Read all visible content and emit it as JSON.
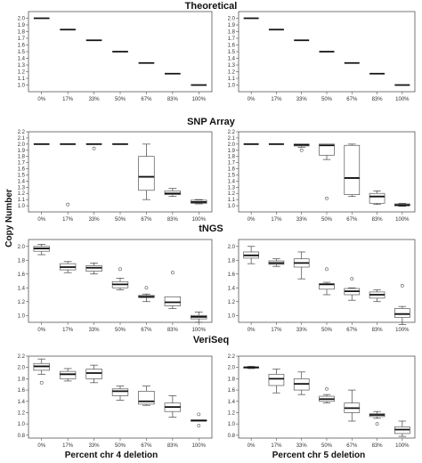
{
  "figure": {
    "y_axis_label": "Copy Number",
    "x_axis_labels": [
      "Percent chr 4 deletion",
      "Percent chr 5 deletion"
    ]
  },
  "chart_data": {
    "type": "box",
    "categories": [
      "0%",
      "17%",
      "33%",
      "50%",
      "67%",
      "83%",
      "100%"
    ],
    "ylabel": "Copy Number",
    "ylim": [
      0.9,
      2.1
    ],
    "yticks": [
      "1.0",
      "1.2",
      "1.4",
      "1.6",
      "1.8",
      "2.0"
    ],
    "y_ticks": [
      1.0,
      1.2,
      1.4,
      1.6,
      1.8,
      2.0
    ],
    "ytick_labels": [
      "1.0",
      "1.1",
      "1.2",
      "1.3",
      "1.4",
      "1.5",
      "1.6",
      "1.7",
      "1.8",
      "1.9",
      "2.0",
      "2.1",
      "2.2"
    ],
    "rows": [
      {
        "title": "Theoretical",
        "ylim": [
          0.9,
          2.1
        ],
        "ytick_labels": [
          "1.0",
          "1.1",
          "1.2",
          "1.3",
          "1.4",
          "1.5",
          "1.6",
          "1.7",
          "1.8",
          "1.9",
          "2.0"
        ],
        "yticks": [
          1.0,
          1.1,
          1.2,
          1.3,
          1.4,
          1.5,
          1.6,
          1.7,
          1.8,
          1.9,
          2.0
        ],
        "panels": [
          {
            "xlabel": "",
            "boxes": [
              {
                "q1": 2.0,
                "median": 2.0,
                "q3": 2.0,
                "whislo": 2.0,
                "whishi": 2.0,
                "outliers": []
              },
              {
                "q1": 1.83,
                "median": 1.83,
                "q3": 1.83,
                "whislo": 1.83,
                "whishi": 1.83,
                "outliers": []
              },
              {
                "q1": 1.67,
                "median": 1.67,
                "q3": 1.67,
                "whislo": 1.67,
                "whishi": 1.67,
                "outliers": []
              },
              {
                "q1": 1.5,
                "median": 1.5,
                "q3": 1.5,
                "whislo": 1.5,
                "whishi": 1.5,
                "outliers": []
              },
              {
                "q1": 1.33,
                "median": 1.33,
                "q3": 1.33,
                "whislo": 1.33,
                "whishi": 1.33,
                "outliers": []
              },
              {
                "q1": 1.17,
                "median": 1.17,
                "q3": 1.17,
                "whislo": 1.17,
                "whishi": 1.17,
                "outliers": []
              },
              {
                "q1": 1.0,
                "median": 1.0,
                "q3": 1.0,
                "whislo": 1.0,
                "whishi": 1.0,
                "outliers": []
              }
            ]
          },
          {
            "xlabel": "",
            "boxes": [
              {
                "q1": 2.0,
                "median": 2.0,
                "q3": 2.0,
                "whislo": 2.0,
                "whishi": 2.0,
                "outliers": []
              },
              {
                "q1": 1.83,
                "median": 1.83,
                "q3": 1.83,
                "whislo": 1.83,
                "whishi": 1.83,
                "outliers": []
              },
              {
                "q1": 1.67,
                "median": 1.67,
                "q3": 1.67,
                "whislo": 1.67,
                "whishi": 1.67,
                "outliers": []
              },
              {
                "q1": 1.5,
                "median": 1.5,
                "q3": 1.5,
                "whislo": 1.5,
                "whishi": 1.5,
                "outliers": []
              },
              {
                "q1": 1.33,
                "median": 1.33,
                "q3": 1.33,
                "whislo": 1.33,
                "whishi": 1.33,
                "outliers": []
              },
              {
                "q1": 1.17,
                "median": 1.17,
                "q3": 1.17,
                "whislo": 1.17,
                "whishi": 1.17,
                "outliers": []
              },
              {
                "q1": 1.0,
                "median": 1.0,
                "q3": 1.0,
                "whislo": 1.0,
                "whishi": 1.0,
                "outliers": []
              }
            ]
          }
        ]
      },
      {
        "title": "SNP Array",
        "ylim": [
          0.9,
          2.2
        ],
        "ytick_labels": [
          "1.0",
          "1.1",
          "1.2",
          "1.3",
          "1.4",
          "1.5",
          "1.6",
          "1.7",
          "1.8",
          "1.9",
          "2.0",
          "2.1",
          "2.2"
        ],
        "yticks": [
          1.0,
          1.1,
          1.2,
          1.3,
          1.4,
          1.5,
          1.6,
          1.7,
          1.8,
          1.9,
          2.0,
          2.1,
          2.2
        ],
        "panels": [
          {
            "xlabel": "",
            "boxes": [
              {
                "q1": 2.0,
                "median": 2.0,
                "q3": 2.0,
                "whislo": 2.0,
                "whishi": 2.0,
                "outliers": []
              },
              {
                "q1": 2.0,
                "median": 2.0,
                "q3": 2.0,
                "whislo": 2.0,
                "whishi": 2.0,
                "outliers": [
                  1.02
                ]
              },
              {
                "q1": 2.0,
                "median": 2.0,
                "q3": 2.0,
                "whislo": 2.0,
                "whishi": 2.0,
                "outliers": [
                  1.93
                ]
              },
              {
                "q1": 2.0,
                "median": 2.0,
                "q3": 2.0,
                "whislo": 2.0,
                "whishi": 2.0,
                "outliers": []
              },
              {
                "q1": 1.25,
                "median": 1.47,
                "q3": 1.8,
                "whislo": 1.1,
                "whishi": 2.0,
                "outliers": []
              },
              {
                "q1": 1.18,
                "median": 1.2,
                "q3": 1.24,
                "whislo": 1.15,
                "whishi": 1.28,
                "outliers": []
              },
              {
                "q1": 1.04,
                "median": 1.06,
                "q3": 1.09,
                "whislo": 1.03,
                "whishi": 1.1,
                "outliers": []
              }
            ]
          },
          {
            "xlabel": "",
            "boxes": [
              {
                "q1": 2.0,
                "median": 2.0,
                "q3": 2.0,
                "whislo": 2.0,
                "whishi": 2.0,
                "outliers": []
              },
              {
                "q1": 2.0,
                "median": 2.0,
                "q3": 2.0,
                "whislo": 2.0,
                "whishi": 2.0,
                "outliers": []
              },
              {
                "q1": 1.97,
                "median": 1.99,
                "q3": 2.0,
                "whislo": 1.95,
                "whishi": 2.0,
                "outliers": [
                  1.9
                ]
              },
              {
                "q1": 1.82,
                "median": 1.98,
                "q3": 2.0,
                "whislo": 1.75,
                "whishi": 2.0,
                "outliers": [
                  1.12
                ]
              },
              {
                "q1": 1.18,
                "median": 1.45,
                "q3": 1.98,
                "whislo": 1.15,
                "whishi": 2.0,
                "outliers": []
              },
              {
                "q1": 1.04,
                "median": 1.15,
                "q3": 1.2,
                "whislo": 1.02,
                "whishi": 1.24,
                "outliers": []
              },
              {
                "q1": 1.0,
                "median": 1.01,
                "q3": 1.03,
                "whislo": 0.99,
                "whishi": 1.04,
                "outliers": []
              }
            ]
          }
        ]
      },
      {
        "title": "tNGS",
        "ylim": [
          0.9,
          2.1
        ],
        "ytick_labels": [
          "1.0",
          "1.2",
          "1.4",
          "1.6",
          "1.8",
          "2.0"
        ],
        "yticks": [
          1.0,
          1.2,
          1.4,
          1.6,
          1.8,
          2.0
        ],
        "panels": [
          {
            "xlabel": "",
            "boxes": [
              {
                "q1": 1.93,
                "median": 1.97,
                "q3": 2.0,
                "whislo": 1.88,
                "whishi": 2.03,
                "outliers": []
              },
              {
                "q1": 1.66,
                "median": 1.7,
                "q3": 1.75,
                "whislo": 1.62,
                "whishi": 1.78,
                "outliers": []
              },
              {
                "q1": 1.64,
                "median": 1.69,
                "q3": 1.72,
                "whislo": 1.6,
                "whishi": 1.76,
                "outliers": []
              },
              {
                "q1": 1.4,
                "median": 1.45,
                "q3": 1.49,
                "whislo": 1.37,
                "whishi": 1.54,
                "outliers": [
                  1.67
                ]
              },
              {
                "q1": 1.26,
                "median": 1.27,
                "q3": 1.29,
                "whislo": 1.2,
                "whishi": 1.31,
                "outliers": [
                  1.4
                ]
              },
              {
                "q1": 1.14,
                "median": 1.19,
                "q3": 1.27,
                "whislo": 1.1,
                "whishi": 1.27,
                "outliers": [
                  1.62
                ]
              },
              {
                "q1": 0.95,
                "median": 0.98,
                "q3": 1.0,
                "whislo": 0.9,
                "whishi": 1.05,
                "outliers": []
              }
            ]
          },
          {
            "xlabel": "",
            "boxes": [
              {
                "q1": 1.83,
                "median": 1.87,
                "q3": 1.92,
                "whislo": 1.75,
                "whishi": 2.0,
                "outliers": []
              },
              {
                "q1": 1.74,
                "median": 1.76,
                "q3": 1.79,
                "whislo": 1.71,
                "whishi": 1.82,
                "outliers": []
              },
              {
                "q1": 1.7,
                "median": 1.76,
                "q3": 1.82,
                "whislo": 1.53,
                "whishi": 1.92,
                "outliers": []
              },
              {
                "q1": 1.38,
                "median": 1.45,
                "q3": 1.46,
                "whislo": 1.3,
                "whishi": 1.48,
                "outliers": [
                  1.67
                ]
              },
              {
                "q1": 1.3,
                "median": 1.35,
                "q3": 1.39,
                "whislo": 1.22,
                "whishi": 1.4,
                "outliers": [
                  1.53
                ]
              },
              {
                "q1": 1.25,
                "median": 1.3,
                "q3": 1.34,
                "whislo": 1.2,
                "whishi": 1.37,
                "outliers": []
              },
              {
                "q1": 0.97,
                "median": 1.02,
                "q3": 1.1,
                "whislo": 0.87,
                "whishi": 1.13,
                "outliers": [
                  1.43
                ]
              }
            ]
          }
        ]
      },
      {
        "title": "VeriSeq",
        "ylim": [
          0.75,
          2.2
        ],
        "ytick_labels": [
          "0.8",
          "1.0",
          "1.2",
          "1.4",
          "1.6",
          "1.8",
          "2.0",
          "2.2"
        ],
        "yticks": [
          0.8,
          1.0,
          1.2,
          1.4,
          1.6,
          1.8,
          2.0,
          2.2
        ],
        "panels": [
          {
            "xlabel": "Percent chr 4 deletion",
            "boxes": [
              {
                "q1": 1.95,
                "median": 2.02,
                "q3": 2.07,
                "whislo": 1.88,
                "whishi": 2.15,
                "outliers": [
                  1.73
                ]
              },
              {
                "q1": 1.8,
                "median": 1.88,
                "q3": 1.93,
                "whislo": 1.76,
                "whishi": 1.98,
                "outliers": []
              },
              {
                "q1": 1.8,
                "median": 1.9,
                "q3": 1.97,
                "whislo": 1.73,
                "whishi": 2.04,
                "outliers": []
              },
              {
                "q1": 1.5,
                "median": 1.58,
                "q3": 1.62,
                "whislo": 1.42,
                "whishi": 1.67,
                "outliers": []
              },
              {
                "q1": 1.35,
                "median": 1.4,
                "q3": 1.58,
                "whislo": 1.33,
                "whishi": 1.67,
                "outliers": []
              },
              {
                "q1": 1.22,
                "median": 1.3,
                "q3": 1.37,
                "whislo": 1.12,
                "whishi": 1.5,
                "outliers": []
              },
              {
                "q1": 1.05,
                "median": 1.06,
                "q3": 1.07,
                "whislo": 1.05,
                "whishi": 1.07,
                "outliers": [
                  1.17,
                  0.97
                ]
              }
            ]
          },
          {
            "xlabel": "Percent chr 5 deletion",
            "boxes": [
              {
                "q1": 1.99,
                "median": 2.0,
                "q3": 2.01,
                "whislo": 1.98,
                "whishi": 2.02,
                "outliers": []
              },
              {
                "q1": 1.68,
                "median": 1.8,
                "q3": 1.88,
                "whislo": 1.55,
                "whishi": 1.97,
                "outliers": []
              },
              {
                "q1": 1.6,
                "median": 1.71,
                "q3": 1.8,
                "whislo": 1.52,
                "whishi": 1.92,
                "outliers": []
              },
              {
                "q1": 1.4,
                "median": 1.44,
                "q3": 1.49,
                "whislo": 1.37,
                "whishi": 1.52,
                "outliers": [
                  1.62
                ]
              },
              {
                "q1": 1.2,
                "median": 1.28,
                "q3": 1.37,
                "whislo": 1.05,
                "whishi": 1.6,
                "outliers": []
              },
              {
                "q1": 1.13,
                "median": 1.16,
                "q3": 1.18,
                "whislo": 1.1,
                "whishi": 1.22,
                "outliers": [
                  1.0
                ]
              },
              {
                "q1": 0.83,
                "median": 0.9,
                "q3": 0.95,
                "whislo": 0.78,
                "whishi": 1.05,
                "outliers": []
              }
            ]
          }
        ]
      }
    ]
  }
}
